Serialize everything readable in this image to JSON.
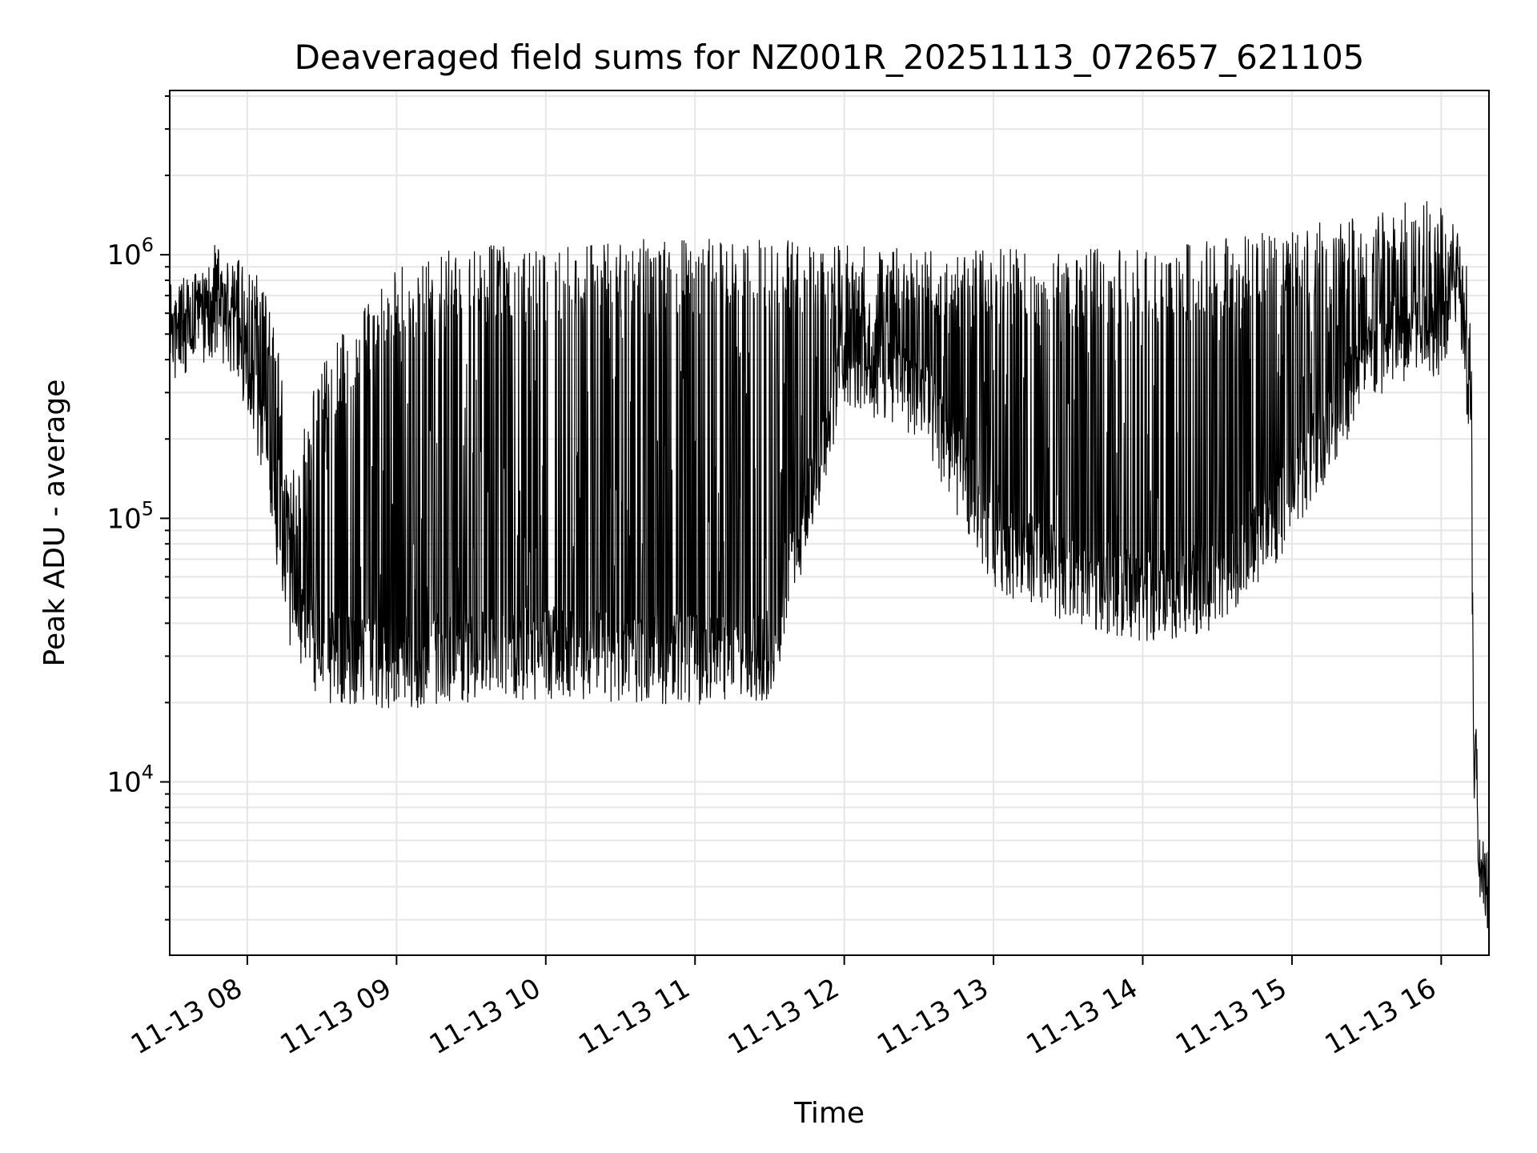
{
  "chart_data": {
    "type": "line",
    "title": "Deaveraged field sums for NZ001R_20251113_072657_621105",
    "xlabel": "Time",
    "ylabel": "Peak ADU - average",
    "yscale": "log",
    "xlim_hours": [
      7.48,
      16.32
    ],
    "ylim": [
      2200,
      4200000
    ],
    "grid": true,
    "line_color": "#000000",
    "grid_color": "#e6e6e6",
    "x_ticks": [
      {
        "value": 8,
        "label": "11-13 08"
      },
      {
        "value": 9,
        "label": "11-13 09"
      },
      {
        "value": 10,
        "label": "11-13 10"
      },
      {
        "value": 11,
        "label": "11-13 11"
      },
      {
        "value": 12,
        "label": "11-13 12"
      },
      {
        "value": 13,
        "label": "11-13 13"
      },
      {
        "value": 14,
        "label": "11-13 14"
      },
      {
        "value": 15,
        "label": "11-13 15"
      },
      {
        "value": 16,
        "label": "11-13 16"
      }
    ],
    "y_ticks": [
      {
        "value": 10000,
        "base": "10",
        "exp": "4"
      },
      {
        "value": 100000,
        "base": "10",
        "exp": "5"
      },
      {
        "value": 1000000,
        "base": "10",
        "exp": "6"
      }
    ],
    "envelope": {
      "description_of_series": "Single noisy series; approximate baseline (low) and peak (high) envelope in data units by time (hours)",
      "time": [
        7.48,
        7.6,
        7.7,
        7.8,
        7.9,
        8.0,
        8.1,
        8.2,
        8.3,
        8.5,
        9.0,
        9.5,
        10.0,
        10.5,
        11.0,
        11.5,
        12.0,
        12.5,
        13.0,
        13.5,
        14.0,
        14.5,
        15.0,
        15.5,
        15.8,
        16.0,
        16.1,
        16.15,
        16.2,
        16.22,
        16.25,
        16.32
      ],
      "low": [
        520000,
        560000,
        580000,
        620000,
        520000,
        380000,
        220000,
        90000,
        40000,
        30000,
        28000,
        30000,
        31000,
        30000,
        29000,
        30000,
        400000,
        300000,
        80000,
        60000,
        50000,
        55000,
        120000,
        400000,
        500000,
        520000,
        800000,
        600000,
        200000,
        12000,
        5000,
        3800
      ],
      "high": [
        650000,
        700000,
        900000,
        1300000,
        1000000,
        900000,
        800000,
        500000,
        150000,
        400000,
        900000,
        1100000,
        1100000,
        1150000,
        1150000,
        1150000,
        1100000,
        1050000,
        1050000,
        1050000,
        1050000,
        1150000,
        1250000,
        1500000,
        1700000,
        1500000,
        1400000,
        1200000,
        800000,
        50000,
        7000,
        5000
      ]
    }
  }
}
